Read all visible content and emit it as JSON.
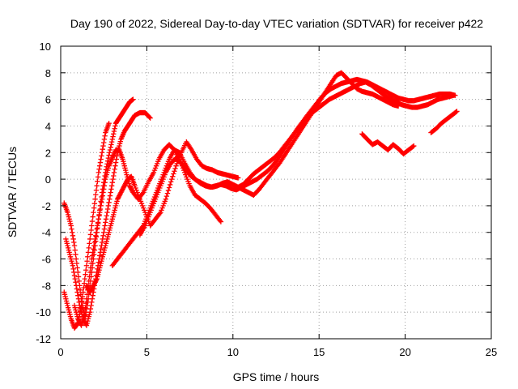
{
  "chart_data": {
    "type": "scatter",
    "title": "Day 190 of 2022, Sidereal Day-to-day VTEC variation (SDTVAR) for receiver p422",
    "xlabel": "GPS time / hours",
    "ylabel": "SDTVAR / TECUs",
    "xlim": [
      0,
      25
    ],
    "ylim": [
      -12,
      10
    ],
    "xticks": [
      "0",
      "5",
      "10",
      "15",
      "20",
      "25"
    ],
    "yticks": [
      "-12",
      "-10",
      "-8",
      "-6",
      "-4",
      "-2",
      "0",
      "2",
      "4",
      "6",
      "8",
      "10"
    ],
    "grid": true,
    "marker": "plus",
    "color": "#ff0000",
    "series": [
      {
        "x": [
          0.2,
          0.4,
          0.6,
          0.8,
          1.0,
          1.2,
          1.4,
          1.6,
          1.8,
          2.0,
          2.2,
          2.4,
          2.6,
          2.8,
          3.0,
          3.2,
          3.4,
          3.6,
          3.8,
          4.0,
          4.2
        ],
        "y": [
          -1.8,
          -2.5,
          -3.5,
          -5,
          -7,
          -9,
          -10.5,
          -9,
          -7,
          -5,
          -3,
          -1,
          0.5,
          1.8,
          3,
          4.2,
          4.6,
          5,
          5.4,
          5.8,
          6
        ]
      },
      {
        "x": [
          0.2,
          0.4,
          0.6,
          0.8,
          1.0,
          1.2,
          1.4,
          1.6,
          1.8,
          2.0,
          2.2,
          2.4,
          2.6,
          2.8
        ],
        "y": [
          -8.5,
          -9.5,
          -10.5,
          -11.2,
          -10.8,
          -9.5,
          -7.5,
          -5.5,
          -3.5,
          -1.5,
          0.5,
          2,
          3.5,
          4.2
        ]
      },
      {
        "x": [
          0.3,
          0.5,
          0.7,
          0.9,
          1.1,
          1.3,
          1.5,
          1.7,
          1.9,
          2.1,
          2.3,
          2.5,
          2.7,
          2.9,
          3.1,
          3.3,
          3.5,
          3.7,
          3.9,
          4.1,
          4.3,
          4.6,
          4.9,
          5.2
        ],
        "y": [
          -4.5,
          -5.5,
          -6.5,
          -8,
          -9.5,
          -10.5,
          -11,
          -10,
          -8.5,
          -7,
          -5.5,
          -4,
          -2.5,
          -1,
          0.5,
          2,
          3,
          3.6,
          4,
          4.4,
          4.8,
          5,
          5,
          4.6
        ]
      },
      {
        "x": [
          0.8,
          1.0,
          1.2,
          1.4,
          1.6,
          1.8,
          2.0,
          2.2,
          2.4,
          2.6,
          2.8,
          3.0,
          3.2,
          3.4,
          3.6,
          3.8,
          4.0,
          4.2,
          4.5,
          4.8,
          5.1,
          5.4,
          5.7,
          6.0,
          6.3,
          6.6,
          6.9,
          7.2,
          7.5,
          7.8,
          8.1,
          8.4,
          8.7,
          9.0,
          9.3
        ],
        "y": [
          -9.5,
          -10.5,
          -11,
          -10,
          -8,
          -6,
          -4.5,
          -3,
          -1.5,
          0,
          1,
          1.6,
          2.2,
          2.2,
          1.5,
          0.5,
          -0.5,
          -1,
          -1.5,
          -1,
          -0.2,
          0.5,
          1.5,
          2.2,
          2.6,
          2.2,
          1.5,
          0.5,
          -0.5,
          -1.2,
          -1.5,
          -1.8,
          -2.2,
          -2.7,
          -3.2
        ]
      },
      {
        "x": [
          1.5,
          1.7,
          1.9,
          2.1,
          2.3,
          2.5,
          2.7,
          2.9,
          3.1,
          3.3,
          3.5,
          3.7,
          3.9,
          4.1,
          4.3,
          4.6,
          4.9,
          5.2,
          5.5,
          5.8,
          6.1,
          6.4,
          6.7,
          7.0,
          7.3,
          7.6,
          7.9,
          8.2,
          8.5,
          8.8,
          9.1,
          9.4,
          9.7,
          10.0,
          10.3
        ],
        "y": [
          -8,
          -8.5,
          -8,
          -7.5,
          -6.5,
          -5.5,
          -4.5,
          -3.5,
          -2.5,
          -1.5,
          -1,
          -0.5,
          0,
          0.2,
          -0.5,
          -1.5,
          -2.5,
          -3.5,
          -3,
          -2.5,
          -1.5,
          -0.2,
          1,
          2,
          2.8,
          2.2,
          1.5,
          1,
          0.8,
          0.7,
          0.5,
          0.4,
          0.3,
          0.2,
          0.1
        ]
      },
      {
        "x": [
          3.0,
          3.3,
          3.6,
          3.9,
          4.2,
          4.5,
          4.8,
          5.1,
          5.4,
          5.7,
          6.0,
          6.3,
          6.6,
          6.9,
          7.2,
          7.5,
          7.8,
          8.1,
          8.4,
          8.7,
          9.0,
          9.3,
          9.6,
          9.9,
          10.2,
          10.5,
          10.8,
          11.1,
          11.4,
          11.7,
          12.0,
          12.3,
          12.6,
          12.9,
          13.2,
          13.5,
          13.8,
          14.1,
          14.4,
          14.7,
          15.0,
          15.3,
          15.6,
          15.9,
          16.2,
          16.5,
          16.8,
          17.1,
          17.4,
          17.7,
          18.0,
          18.3,
          18.6,
          18.9,
          19.2,
          19.5,
          19.8,
          20.1,
          20.4,
          20.7,
          21.0,
          21.3,
          21.6,
          21.9,
          22.2,
          22.5,
          22.8
        ],
        "y": [
          -6.5,
          -6,
          -5.5,
          -5,
          -4.5,
          -4,
          -3.5,
          -2.5,
          -1.5,
          -0.5,
          0.5,
          1.5,
          2.2,
          2,
          1.2,
          0.5,
          0,
          -0.3,
          -0.5,
          -0.6,
          -0.5,
          -0.4,
          -0.5,
          -0.7,
          -0.8,
          -0.6,
          -0.4,
          -0.2,
          0,
          0.3,
          0.6,
          1,
          1.5,
          2.1,
          2.7,
          3.3,
          3.9,
          4.4,
          4.8,
          5.1,
          5.4,
          5.7,
          6,
          6.2,
          6.4,
          6.6,
          6.8,
          7,
          7.2,
          7.3,
          7.1,
          6.8,
          6.5,
          6.2,
          6,
          5.8,
          5.6,
          5.5,
          5.4,
          5.4,
          5.5,
          5.6,
          5.8,
          6,
          6.1,
          6.2,
          6.3
        ]
      },
      {
        "x": [
          4.6,
          4.9,
          5.2,
          5.5,
          5.8,
          6.1,
          6.4,
          6.7,
          7.0,
          7.3,
          7.6,
          7.9,
          8.2,
          8.5,
          8.8,
          9.1,
          9.4,
          9.7,
          10.0,
          10.3,
          10.6,
          10.9,
          11.2,
          11.5,
          11.8,
          12.1,
          12.4,
          12.7,
          13.0,
          13.3,
          13.6,
          13.9,
          14.2,
          14.5,
          14.8,
          15.1,
          15.4,
          15.7,
          16.0,
          16.3,
          16.6,
          16.9,
          17.2,
          17.5,
          17.8,
          18.1,
          18.4,
          18.7,
          19.0,
          19.3,
          19.6,
          19.9,
          20.2,
          20.5,
          20.8,
          21.1,
          21.4,
          21.7,
          22.0,
          22.3,
          22.6,
          22.9
        ],
        "y": [
          -4.2,
          -3.5,
          -2.5,
          -1.5,
          -0.5,
          0.5,
          1.2,
          1.6,
          1.2,
          0.6,
          0.2,
          -0.1,
          -0.3,
          -0.5,
          -0.6,
          -0.5,
          -0.3,
          -0.2,
          -0.4,
          -0.6,
          -0.4,
          0,
          0.4,
          0.7,
          1,
          1.3,
          1.6,
          2,
          2.5,
          3,
          3.5,
          4,
          4.6,
          5.1,
          5.6,
          6.1,
          6.5,
          6.8,
          7,
          7.2,
          7.3,
          7.4,
          7.5,
          7.4,
          7.3,
          7.1,
          6.9,
          6.7,
          6.5,
          6.3,
          6.1,
          6,
          5.9,
          5.9,
          6,
          6.1,
          6.2,
          6.3,
          6.4,
          6.4,
          6.4,
          6.3
        ]
      },
      {
        "x": [
          10.3,
          10.6,
          10.9,
          11.2,
          11.5,
          11.8,
          12.1,
          12.4,
          12.7,
          13.0,
          13.3,
          13.6,
          13.9,
          14.2,
          14.5,
          14.8,
          15.1,
          15.4,
          15.7,
          16.0,
          16.3,
          16.6,
          16.9,
          17.2,
          17.5,
          17.8,
          18.1,
          18.4,
          18.7,
          19.0,
          19.3,
          19.6
        ],
        "y": [
          -0.6,
          -0.8,
          -1,
          -1.2,
          -0.8,
          -0.3,
          0.2,
          0.7,
          1.2,
          1.8,
          2.4,
          3,
          3.6,
          4.2,
          4.8,
          5.4,
          6,
          6.6,
          7.2,
          7.8,
          8,
          7.6,
          7.2,
          6.8,
          6.6,
          6.5,
          6.4,
          6.2,
          6,
          5.8,
          5.6,
          5.5
        ]
      },
      {
        "x": [
          17.5,
          17.8,
          18.1,
          18.4,
          18.7,
          19.0,
          19.3,
          19.6,
          19.9,
          20.2,
          20.5
        ],
        "y": [
          3.4,
          3,
          2.6,
          2.8,
          2.5,
          2.2,
          2.6,
          2.3,
          1.9,
          2.2,
          2.5
        ]
      },
      {
        "x": [
          21.5,
          21.8,
          22.1,
          22.4,
          22.7,
          23.0
        ],
        "y": [
          3.5,
          3.8,
          4.2,
          4.5,
          4.8,
          5.1
        ]
      }
    ]
  }
}
